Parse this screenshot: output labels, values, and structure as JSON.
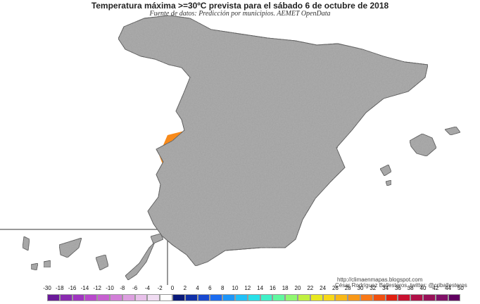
{
  "title": "Temperatura máxima >=30ºC prevista para el sábado 6 de octubre de 2018",
  "subtitle": "Fuente de datos: Predicción por municipios. AEMET OpenData",
  "credits": {
    "blog": "http://climaenmapas.blogspot.com",
    "author": "César Rodríguez Ballesteros, twitter: @criballesteros"
  },
  "legend": {
    "ticks": [
      "-30",
      "-18",
      "-16",
      "-14",
      "-12",
      "-10",
      "-8",
      "-6",
      "-4",
      "-2",
      "0",
      "2",
      "4",
      "6",
      "8",
      "10",
      "12",
      "14",
      "16",
      "18",
      "20",
      "22",
      "24",
      "26",
      "28",
      "30",
      "32",
      "34",
      "36",
      "38",
      "40",
      "42",
      "44",
      "50"
    ],
    "colors": [
      "#6a1a9a",
      "#8a2bb0",
      "#a035c0",
      "#b848cc",
      "#c660d0",
      "#d27fd8",
      "#dd9fe0",
      "#e8c0ea",
      "#f0dcf2",
      "#ffffff",
      "#0a1a7a",
      "#1030a8",
      "#1848d0",
      "#1c6cf0",
      "#1e96f8",
      "#20c0f8",
      "#28e0e8",
      "#40f0c8",
      "#60f8a0",
      "#90f870",
      "#c0f040",
      "#e8e820",
      "#f8d818",
      "#f8b818",
      "#f89818",
      "#f87818",
      "#f05010",
      "#e02010",
      "#c81030",
      "#b01048",
      "#981058",
      "#801068",
      "#600060"
    ]
  },
  "map": {
    "land_color": "#a0a0a0",
    "sea_color": "#ffffff",
    "border_color": "#3a3a3a",
    "heat_30_color": "#f88a1a",
    "heat_32_color": "#e8180c"
  }
}
